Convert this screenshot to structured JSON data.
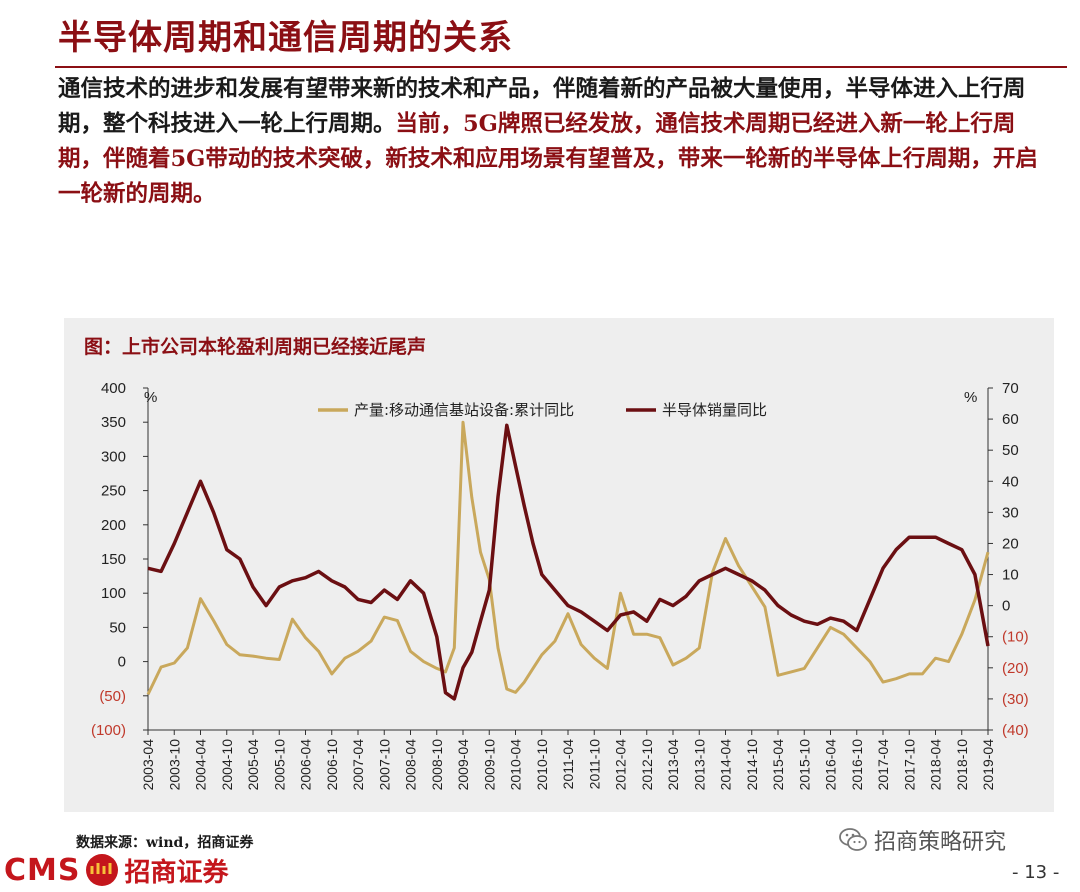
{
  "page": {
    "title": "半导体周期和通信周期的关系",
    "paragraph_black": "通信技术的进步和发展有望带来新的技术和产品，伴随着新的产品被大量使用，半导体进入上行周期，整个科技进入一轮上行周期。",
    "paragraph_red": "当前，5G牌照已经发放，通信技术周期已经进入新一轮上行周期，伴随着5G带动的技术突破，新技术和应用场景有望普及，带来一轮新的半导体上行周期，开启一轮新的周期。",
    "source": "数据来源：wind，招商证券",
    "logo_text": "CMS",
    "logo_cn": "招商证券",
    "watermark": "招商策略研究",
    "page_number": "- 13 -",
    "colors": {
      "brand_red": "#8b0f14",
      "gold": "#c9a85c",
      "dark_red": "#6b0f12",
      "axis_negative": "#c0392b"
    },
    "icons": {
      "wechat": "wechat-icon",
      "logo_emblem": "cms-emblem-icon"
    }
  },
  "chart_data": {
    "type": "line",
    "title": "图：上市公司本轮盈利周期已经接近尾声",
    "left_unit": "%",
    "right_unit": "%",
    "legend_placement": "top-center",
    "grid": false,
    "left_ylim": [
      -100,
      400
    ],
    "right_ylim": [
      -40,
      70
    ],
    "left_ticks": [
      "400",
      "350",
      "300",
      "250",
      "200",
      "150",
      "100",
      "50",
      "0",
      "(50)",
      "(100)"
    ],
    "left_tick_values": [
      400,
      350,
      300,
      250,
      200,
      150,
      100,
      50,
      0,
      -50,
      -100
    ],
    "right_ticks": [
      "70",
      "60",
      "50",
      "40",
      "30",
      "20",
      "10",
      "0",
      "(10)",
      "(20)",
      "(30)",
      "(40)"
    ],
    "right_tick_values": [
      70,
      60,
      50,
      40,
      30,
      20,
      10,
      0,
      -10,
      -20,
      -30,
      -40
    ],
    "x_ticks": [
      "2003-04",
      "2003-10",
      "2004-04",
      "2004-10",
      "2005-04",
      "2005-10",
      "2006-04",
      "2006-10",
      "2007-04",
      "2007-10",
      "2008-04",
      "2008-10",
      "2009-04",
      "2009-10",
      "2010-04",
      "2010-10",
      "2011-04",
      "2011-10",
      "2012-04",
      "2012-10",
      "2013-04",
      "2013-10",
      "2014-04",
      "2014-10",
      "2015-04",
      "2015-10",
      "2016-04",
      "2016-10",
      "2017-04",
      "2017-10",
      "2018-04",
      "2018-10",
      "2019-04"
    ],
    "series": [
      {
        "name": "产量:移动通信基站设备:累计同比",
        "axis": "left",
        "color": "#c9a85c",
        "x": [
          "2003-04",
          "2003-07",
          "2003-10",
          "2004-01",
          "2004-04",
          "2004-07",
          "2004-10",
          "2005-01",
          "2005-04",
          "2005-07",
          "2005-10",
          "2006-01",
          "2006-04",
          "2006-07",
          "2006-10",
          "2007-01",
          "2007-04",
          "2007-07",
          "2007-10",
          "2008-01",
          "2008-04",
          "2008-07",
          "2008-10",
          "2008-12",
          "2009-02",
          "2009-04",
          "2009-06",
          "2009-08",
          "2009-10",
          "2009-12",
          "2010-02",
          "2010-04",
          "2010-06",
          "2010-08",
          "2010-10",
          "2011-01",
          "2011-04",
          "2011-07",
          "2011-10",
          "2012-01",
          "2012-04",
          "2012-07",
          "2012-10",
          "2013-01",
          "2013-04",
          "2013-07",
          "2013-10",
          "2014-01",
          "2014-04",
          "2014-07",
          "2014-10",
          "2015-01",
          "2015-04",
          "2015-07",
          "2015-10",
          "2016-01",
          "2016-04",
          "2016-07",
          "2016-10",
          "2017-01",
          "2017-04",
          "2017-07",
          "2017-10",
          "2018-01",
          "2018-04",
          "2018-07",
          "2018-10",
          "2019-01",
          "2019-04"
        ],
        "values": [
          -48,
          -8,
          -2,
          20,
          92,
          60,
          25,
          10,
          8,
          5,
          3,
          62,
          35,
          15,
          -18,
          5,
          15,
          30,
          65,
          60,
          15,
          0,
          -10,
          -15,
          20,
          350,
          240,
          160,
          120,
          20,
          -40,
          -45,
          -30,
          -10,
          10,
          30,
          70,
          25,
          5,
          -10,
          100,
          40,
          40,
          35,
          -5,
          5,
          20,
          130,
          180,
          140,
          110,
          80,
          -20,
          -15,
          -10,
          20,
          50,
          40,
          20,
          0,
          -30,
          -25,
          -18,
          -18,
          5,
          0,
          40,
          90,
          160
        ]
      },
      {
        "name": "半导体销量同比",
        "axis": "right",
        "color": "#6b0f12",
        "x": [
          "2003-04",
          "2003-07",
          "2003-10",
          "2004-01",
          "2004-04",
          "2004-07",
          "2004-10",
          "2005-01",
          "2005-04",
          "2005-07",
          "2005-10",
          "2006-01",
          "2006-04",
          "2006-07",
          "2006-10",
          "2007-01",
          "2007-04",
          "2007-07",
          "2007-10",
          "2008-01",
          "2008-04",
          "2008-07",
          "2008-10",
          "2008-12",
          "2009-02",
          "2009-04",
          "2009-06",
          "2009-08",
          "2009-10",
          "2009-12",
          "2010-02",
          "2010-04",
          "2010-06",
          "2010-08",
          "2010-10",
          "2011-01",
          "2011-04",
          "2011-07",
          "2011-10",
          "2012-01",
          "2012-04",
          "2012-07",
          "2012-10",
          "2013-01",
          "2013-04",
          "2013-07",
          "2013-10",
          "2014-01",
          "2014-04",
          "2014-07",
          "2014-10",
          "2015-01",
          "2015-04",
          "2015-07",
          "2015-10",
          "2016-01",
          "2016-04",
          "2016-07",
          "2016-10",
          "2017-01",
          "2017-04",
          "2017-07",
          "2017-10",
          "2018-01",
          "2018-04",
          "2018-07",
          "2018-10",
          "2019-01",
          "2019-04"
        ],
        "values": [
          12,
          11,
          20,
          30,
          40,
          30,
          18,
          15,
          6,
          0,
          6,
          8,
          9,
          11,
          8,
          6,
          2,
          1,
          5,
          2,
          8,
          4,
          -10,
          -28,
          -30,
          -20,
          -15,
          -5,
          5,
          35,
          58,
          45,
          32,
          20,
          10,
          5,
          0,
          -2,
          -5,
          -8,
          -3,
          -2,
          -5,
          2,
          0,
          3,
          8,
          10,
          12,
          10,
          8,
          5,
          0,
          -3,
          -5,
          -6,
          -4,
          -5,
          -8,
          2,
          12,
          18,
          22,
          22,
          22,
          20,
          18,
          10,
          -13
        ]
      }
    ]
  }
}
